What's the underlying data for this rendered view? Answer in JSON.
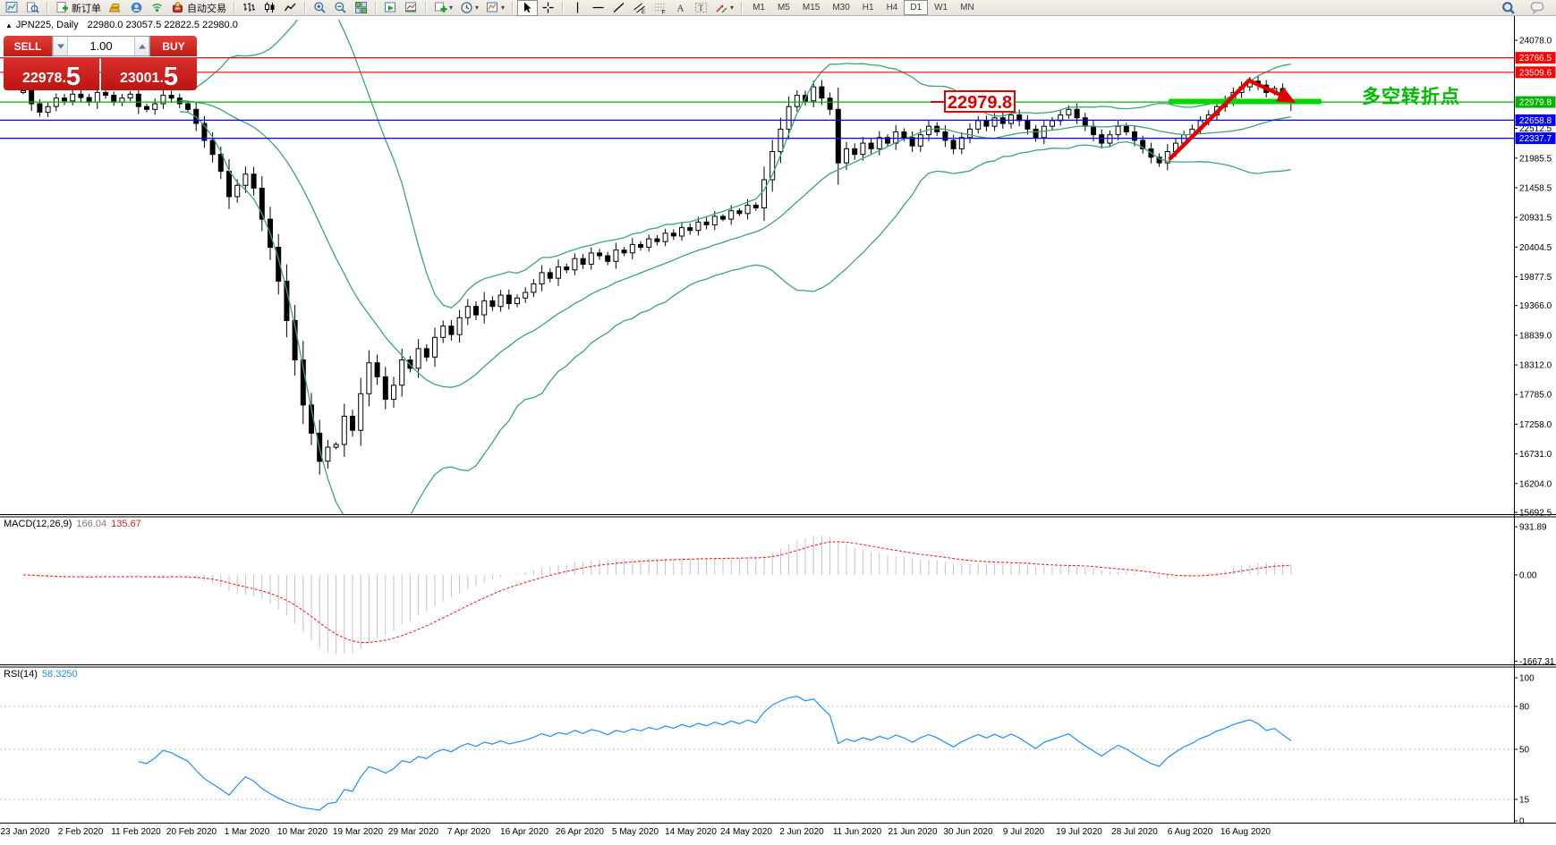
{
  "toolbar": {
    "groups": [
      {
        "items": [
          {
            "icon": "charts-window"
          },
          {
            "icon": "profile-search"
          }
        ]
      },
      {
        "items": [
          {
            "icon": "new-order-doc",
            "label": "新订单"
          },
          {
            "icon": "gold-bars"
          },
          {
            "icon": "mql-community"
          },
          {
            "icon": "signal"
          },
          {
            "icon": "auto-trading-robot",
            "label": "自动交易"
          }
        ]
      },
      {
        "items": [
          {
            "icon": "bar-chart-type"
          },
          {
            "icon": "candlestick-chart-type"
          },
          {
            "icon": "line-chart-type"
          }
        ]
      },
      {
        "items": [
          {
            "icon": "zoom-in"
          },
          {
            "icon": "zoom-out"
          },
          {
            "icon": "tile-windows"
          }
        ]
      },
      {
        "items": [
          {
            "icon": "arrange-windows"
          },
          {
            "icon": "indicator-window"
          }
        ]
      },
      {
        "items": [
          {
            "icon": "add-indicator",
            "dropdown": true
          },
          {
            "icon": "periods-clock",
            "dropdown": true
          },
          {
            "icon": "templates-chart",
            "dropdown": true
          }
        ]
      },
      {
        "items": [
          {
            "icon": "cursor",
            "active": true
          },
          {
            "icon": "crosshair"
          }
        ]
      },
      {
        "items": [
          {
            "icon": "vertical-line"
          },
          {
            "icon": "horizontal-line"
          },
          {
            "icon": "trendline"
          },
          {
            "icon": "equidistant-channel"
          },
          {
            "icon": "fibonacci"
          },
          {
            "icon": "text-a"
          },
          {
            "icon": "text-label"
          },
          {
            "icon": "arrows-objects",
            "dropdown": true
          }
        ]
      }
    ],
    "timeframes": [
      "M1",
      "M5",
      "M15",
      "M30",
      "H1",
      "H4",
      "D1",
      "W1",
      "MN"
    ],
    "active_timeframe": "D1",
    "right_icons": [
      "search",
      "chat"
    ]
  },
  "chart_header": {
    "collapse_glyph": "▲",
    "symbol_title": "JPN225, Daily",
    "ohlc": "22980.0 23057.5 22822.5 22980.0"
  },
  "trade_panel": {
    "sell_label": "SELL",
    "buy_label": "BUY",
    "volume": "1.00",
    "sell_price": {
      "main": "22978.",
      "big": "5"
    },
    "buy_price": {
      "main": "23001.",
      "big": "5"
    }
  },
  "indicators": {
    "macd_label": "MACD(12,26,9)",
    "macd_main": "166.04",
    "macd_signal": "135.67",
    "rsi_label": "RSI(14)",
    "rsi_value": "58.3250"
  },
  "annotations": {
    "price_callout": "22979.8",
    "turning_point_text": "多空转折点"
  },
  "colors": {
    "resistance_line": "#ff0000",
    "support_line": "#0000ff",
    "price_line": "#00b400",
    "highlight_band": "#00d800",
    "bollinger": "#3da571",
    "macd_histogram": "#c4c4c4",
    "macd_signal": "#ff2020",
    "rsi_line": "#1e90ff",
    "rsi_level": "#c0c0c0",
    "annotation_red": "#e00000",
    "annotation_green": "#00bb00"
  },
  "chart_data": {
    "type": "candlestick",
    "title": "JPN225 Daily with Bollinger Bands, MACD(12,26,9), RSI(14)",
    "x_dates": [
      "23 Jan 2020",
      "2 Feb 2020",
      "11 Feb 2020",
      "20 Feb 2020",
      "1 Mar 2020",
      "10 Mar 2020",
      "19 Mar 2020",
      "29 Mar 2020",
      "7 Apr 2020",
      "16 Apr 2020",
      "26 Apr 2020",
      "5 May 2020",
      "14 May 2020",
      "24 May 2020",
      "2 Jun 2020",
      "11 Jun 2020",
      "21 Jun 2020",
      "30 Jun 2020",
      "9 Jul 2020",
      "19 Jul 2020",
      "28 Jul 2020",
      "6 Aug 2020",
      "16 Aug 2020"
    ],
    "first_open": 23150,
    "closes": [
      23180,
      22950,
      22800,
      22900,
      23050,
      23000,
      23120,
      23060,
      22980,
      23150,
      23100,
      22980,
      23050,
      23120,
      22900,
      22850,
      22950,
      23100,
      23050,
      22950,
      22850,
      22600,
      22300,
      22050,
      21750,
      21300,
      21500,
      21700,
      21450,
      20900,
      20400,
      19800,
      19100,
      18400,
      17600,
      17100,
      16600,
      16850,
      16900,
      17400,
      17150,
      17800,
      18350,
      18100,
      17700,
      17950,
      18400,
      18250,
      18600,
      18450,
      18800,
      19000,
      18850,
      19150,
      19350,
      19200,
      19450,
      19350,
      19550,
      19400,
      19500,
      19600,
      19750,
      19950,
      19850,
      20050,
      20000,
      20200,
      20100,
      20300,
      20250,
      20150,
      20350,
      20300,
      20450,
      20400,
      20550,
      20500,
      20650,
      20600,
      20750,
      20700,
      20850,
      20800,
      20950,
      20900,
      21050,
      21000,
      21150,
      21100,
      21600,
      22100,
      22500,
      22900,
      23100,
      23000,
      23250,
      23050,
      22850,
      21900,
      22150,
      22050,
      22250,
      22150,
      22350,
      22250,
      22450,
      22350,
      22200,
      22400,
      22550,
      22450,
      22300,
      22150,
      22350,
      22500,
      22650,
      22550,
      22700,
      22600,
      22750,
      22650,
      22500,
      22350,
      22550,
      22650,
      22750,
      22850,
      22700,
      22550,
      22400,
      22250,
      22400,
      22550,
      22450,
      22300,
      22150,
      22000,
      21900,
      22100,
      22250,
      22400,
      22500,
      22650,
      22750,
      22900,
      23000,
      23150,
      23250,
      23350,
      23280,
      23150,
      23220,
      23100,
      22980
    ],
    "last_candle": {
      "open": 22980.0,
      "high": 23057.5,
      "low": 22822.5,
      "close": 22980.0
    },
    "bollinger": {
      "period": 20,
      "deviation": 2
    },
    "y_axis_ticks": [
      "24078.0",
      "22512.5",
      "21985.5",
      "21458.5",
      "20931.5",
      "20404.5",
      "19877.5",
      "19366.0",
      "18839.0",
      "18312.0",
      "17785.0",
      "17258.0",
      "16731.0",
      "16204.0",
      "15692.5"
    ],
    "price_lines": [
      {
        "label": "23766.5",
        "value": 23766.5,
        "type": "resistance"
      },
      {
        "label": "23509.6",
        "value": 23509.6,
        "type": "resistance"
      },
      {
        "label": "22979.8",
        "value": 22979.8,
        "type": "current"
      },
      {
        "label": "22658.8",
        "value": 22658.8,
        "type": "support"
      },
      {
        "label": "22337.7",
        "value": 22337.7,
        "type": "support"
      }
    ],
    "macd": {
      "params": [
        12,
        26,
        9
      ],
      "scale_labels": [
        {
          "label": "931.89",
          "value": 931.89
        },
        {
          "label": "0.00",
          "value": 0
        },
        {
          "label": "-1667.31",
          "value": -1667.31
        }
      ]
    },
    "rsi": {
      "period": 14,
      "scale_labels": [
        "100",
        "80",
        "50",
        "15",
        "0"
      ],
      "levels": [
        80,
        50,
        15
      ],
      "range": [
        0,
        100
      ]
    }
  }
}
